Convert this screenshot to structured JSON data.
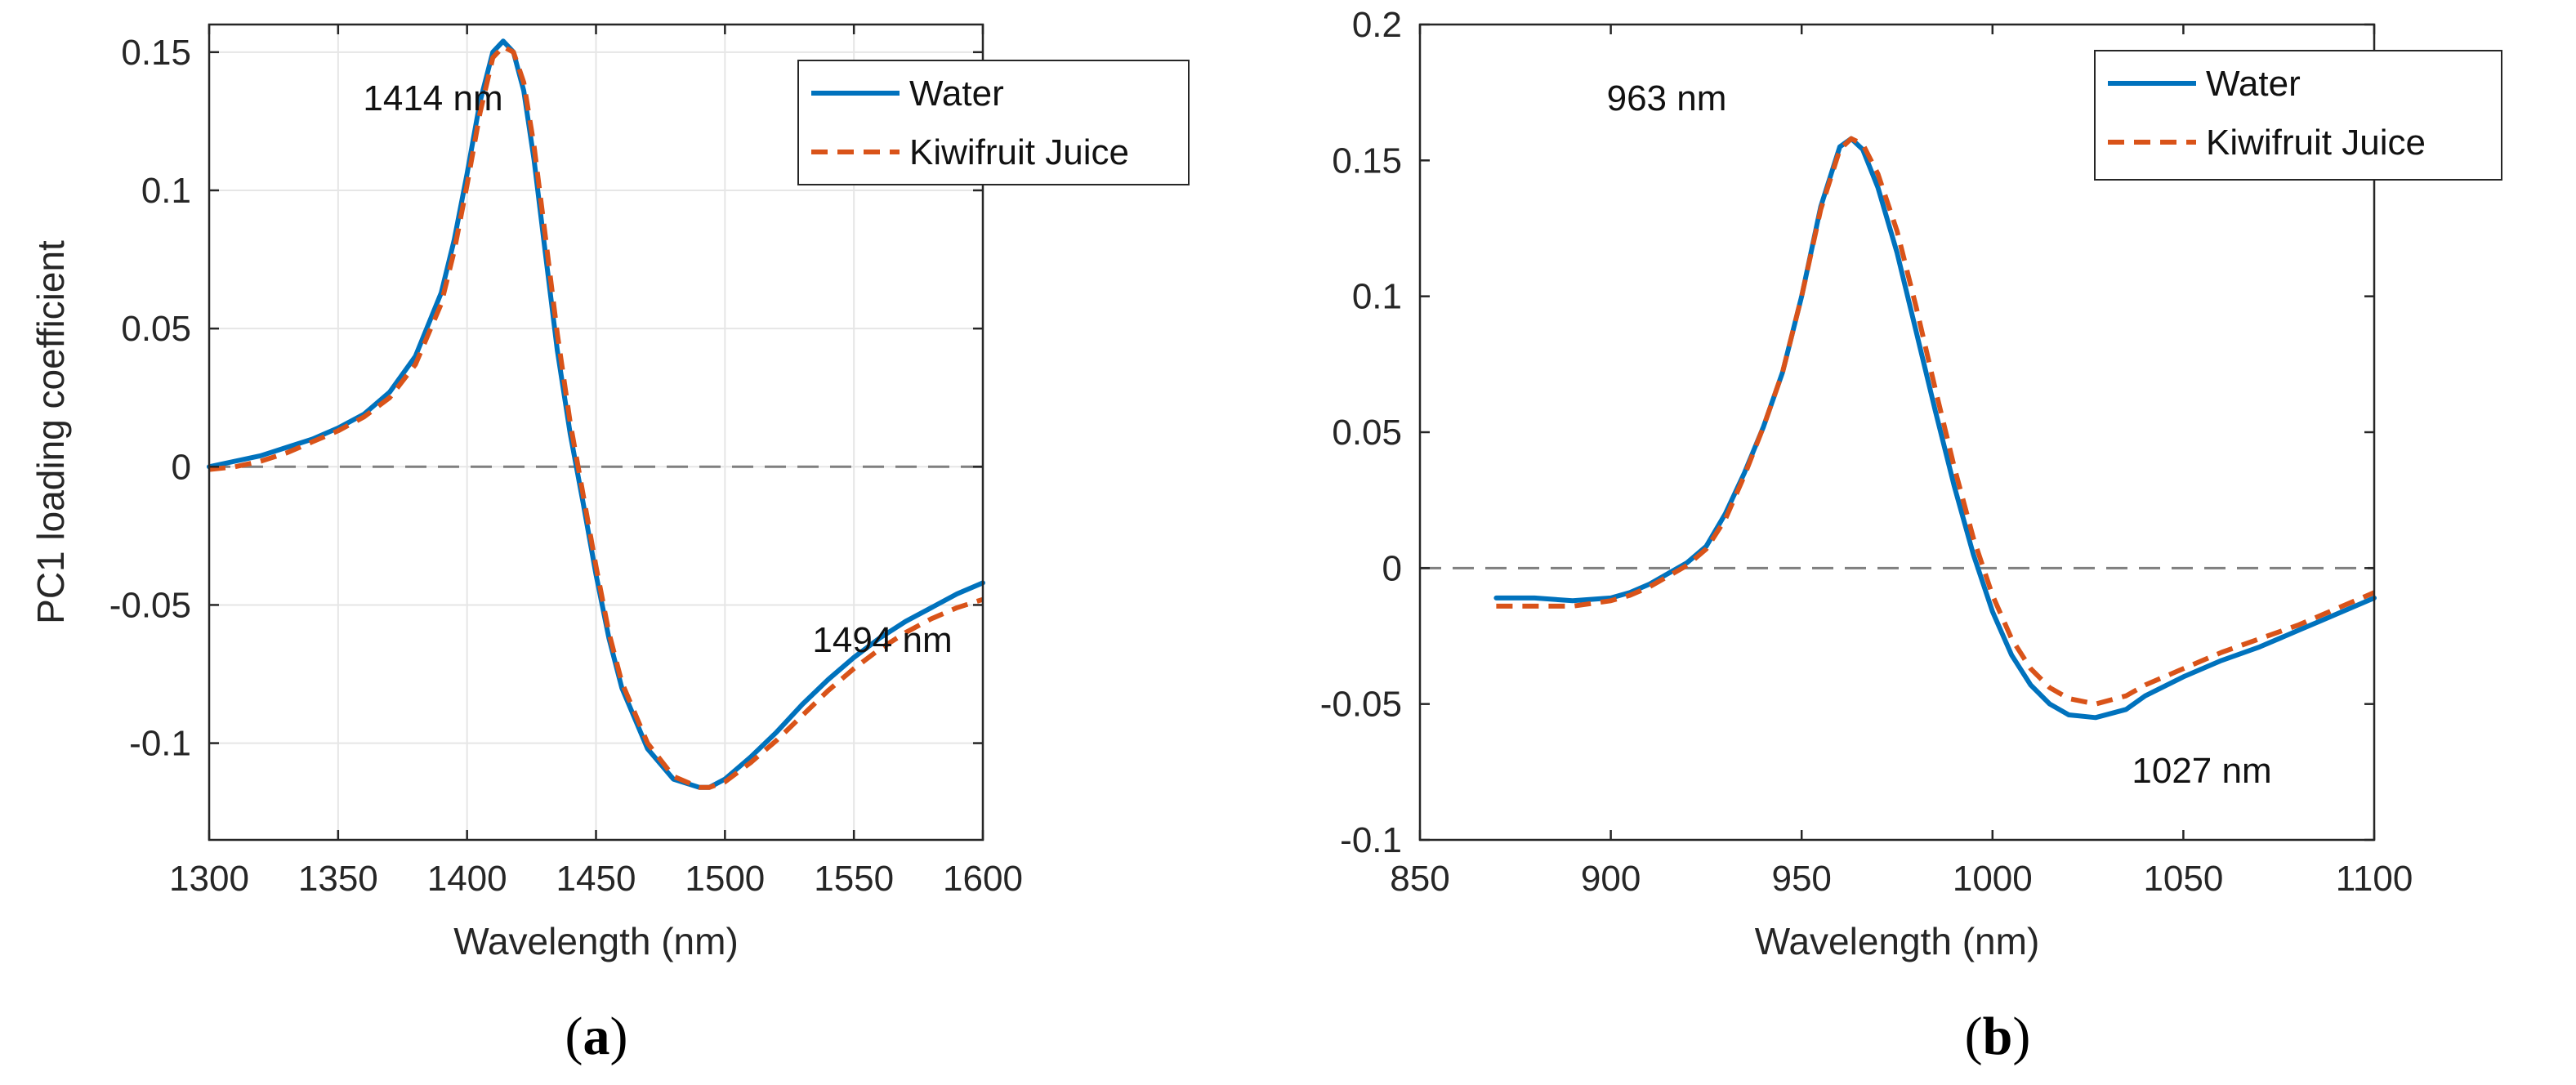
{
  "colors": {
    "water": "#0072BD",
    "juice": "#D95319",
    "zero_line": "#7f7f7f",
    "grid": "#e6e6e6",
    "axis": "#262626"
  },
  "chart_data": [
    {
      "type": "line",
      "panel_label": "(a)",
      "panel_letter": "a",
      "xlabel": "Wavelength (nm)",
      "ylabel": "PC1 loading coefficient",
      "xlim": [
        1300,
        1600
      ],
      "ylim": [
        -0.135,
        0.16
      ],
      "xticks": [
        1300,
        1350,
        1400,
        1450,
        1500,
        1550,
        1600
      ],
      "yticks": [
        -0.1,
        -0.05,
        0,
        0.05,
        0.1,
        0.15
      ],
      "ytick_labels": [
        "-0.1",
        "-0.05",
        "0",
        "0.05",
        "0.1",
        "0.15"
      ],
      "grid": true,
      "zero_line": true,
      "legend_position": "top-right",
      "annotations": [
        {
          "text": "1414 nm",
          "x": 1345,
          "y": 0.133
        },
        {
          "text": "1494 nm",
          "x": 1503,
          "y": -0.067
        }
      ],
      "series": [
        {
          "name": "Water",
          "style": "solid",
          "x": [
            1300,
            1310,
            1320,
            1330,
            1340,
            1350,
            1360,
            1370,
            1380,
            1390,
            1395,
            1400,
            1405,
            1410,
            1414,
            1418,
            1422,
            1426,
            1430,
            1435,
            1440,
            1445,
            1450,
            1455,
            1460,
            1470,
            1480,
            1490,
            1494,
            1500,
            1510,
            1520,
            1530,
            1540,
            1550,
            1560,
            1570,
            1580,
            1590,
            1600
          ],
          "y": [
            0.0,
            0.002,
            0.004,
            0.007,
            0.01,
            0.014,
            0.019,
            0.027,
            0.04,
            0.063,
            0.082,
            0.106,
            0.132,
            0.15,
            0.154,
            0.15,
            0.136,
            0.111,
            0.08,
            0.042,
            0.012,
            -0.013,
            -0.039,
            -0.062,
            -0.08,
            -0.102,
            -0.113,
            -0.116,
            -0.116,
            -0.113,
            -0.105,
            -0.096,
            -0.086,
            -0.077,
            -0.069,
            -0.062,
            -0.056,
            -0.051,
            -0.046,
            -0.042
          ]
        },
        {
          "name": "Kiwifruit Juice",
          "style": "dashed",
          "x": [
            1300,
            1310,
            1320,
            1330,
            1340,
            1350,
            1360,
            1370,
            1380,
            1390,
            1395,
            1400,
            1405,
            1410,
            1414,
            1418,
            1422,
            1426,
            1430,
            1435,
            1440,
            1445,
            1450,
            1455,
            1460,
            1470,
            1480,
            1490,
            1494,
            1500,
            1510,
            1520,
            1530,
            1540,
            1550,
            1560,
            1570,
            1580,
            1590,
            1600
          ],
          "y": [
            -0.001,
            0.0,
            0.002,
            0.005,
            0.009,
            0.013,
            0.018,
            0.025,
            0.037,
            0.059,
            0.078,
            0.102,
            0.128,
            0.148,
            0.152,
            0.15,
            0.139,
            0.116,
            0.086,
            0.048,
            0.016,
            -0.01,
            -0.036,
            -0.06,
            -0.078,
            -0.1,
            -0.112,
            -0.116,
            -0.116,
            -0.114,
            -0.107,
            -0.099,
            -0.09,
            -0.081,
            -0.073,
            -0.066,
            -0.06,
            -0.055,
            -0.051,
            -0.048
          ]
        }
      ]
    },
    {
      "type": "line",
      "panel_label": "(b)",
      "panel_letter": "b",
      "xlabel": "Wavelength (nm)",
      "ylabel": "",
      "xlim": [
        850,
        1100
      ],
      "ylim": [
        -0.1,
        0.2
      ],
      "xticks": [
        850,
        900,
        950,
        1000,
        1050,
        1100
      ],
      "yticks": [
        -0.1,
        -0.05,
        0,
        0.05,
        0.1,
        0.15,
        0.2
      ],
      "ytick_labels": [
        "-0.1",
        "-0.05",
        "0",
        "0.05",
        "0.1",
        "0.15",
        "0.2"
      ],
      "grid": false,
      "zero_line": true,
      "legend_position": "top-right",
      "annotations": [
        {
          "text": "963 nm",
          "x": 963,
          "y": 0.167
        },
        {
          "text": "1027  nm",
          "x": 1027,
          "y": -0.077
        }
      ],
      "series": [
        {
          "name": "Water",
          "style": "solid",
          "x": [
            870,
            880,
            890,
            900,
            905,
            910,
            915,
            920,
            925,
            930,
            935,
            940,
            945,
            950,
            955,
            960,
            963,
            966,
            970,
            975,
            980,
            985,
            990,
            995,
            1000,
            1005,
            1010,
            1015,
            1020,
            1027,
            1035,
            1040,
            1050,
            1060,
            1070,
            1080,
            1090,
            1100
          ],
          "y": [
            -0.011,
            -0.011,
            -0.012,
            -0.011,
            -0.009,
            -0.006,
            -0.002,
            0.002,
            0.008,
            0.02,
            0.035,
            0.052,
            0.072,
            0.1,
            0.133,
            0.155,
            0.158,
            0.154,
            0.14,
            0.116,
            0.087,
            0.058,
            0.03,
            0.005,
            -0.016,
            -0.032,
            -0.043,
            -0.05,
            -0.054,
            -0.055,
            -0.052,
            -0.047,
            -0.04,
            -0.034,
            -0.029,
            -0.023,
            -0.017,
            -0.011
          ]
        },
        {
          "name": "Kiwifruit Juice",
          "style": "dashed",
          "x": [
            870,
            880,
            890,
            900,
            905,
            910,
            915,
            920,
            925,
            930,
            935,
            940,
            945,
            950,
            955,
            960,
            963,
            966,
            970,
            975,
            980,
            985,
            990,
            995,
            1000,
            1005,
            1010,
            1015,
            1020,
            1027,
            1035,
            1040,
            1050,
            1060,
            1070,
            1080,
            1090,
            1100
          ],
          "y": [
            -0.014,
            -0.014,
            -0.014,
            -0.012,
            -0.01,
            -0.007,
            -0.003,
            0.001,
            0.007,
            0.018,
            0.034,
            0.052,
            0.072,
            0.1,
            0.132,
            0.154,
            0.158,
            0.156,
            0.145,
            0.124,
            0.096,
            0.066,
            0.037,
            0.011,
            -0.01,
            -0.026,
            -0.037,
            -0.044,
            -0.048,
            -0.05,
            -0.047,
            -0.043,
            -0.037,
            -0.031,
            -0.026,
            -0.021,
            -0.015,
            -0.009
          ]
        }
      ]
    }
  ]
}
